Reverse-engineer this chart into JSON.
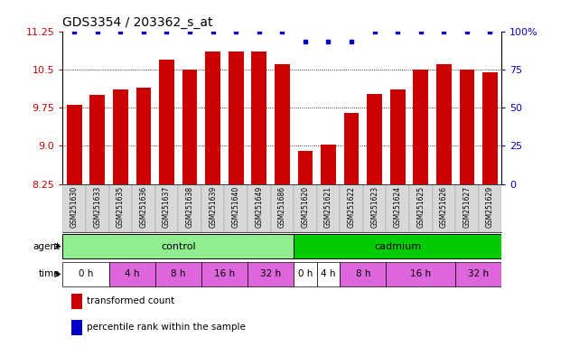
{
  "title": "GDS3354 / 203362_s_at",
  "samples": [
    "GSM251630",
    "GSM251633",
    "GSM251635",
    "GSM251636",
    "GSM251637",
    "GSM251638",
    "GSM251639",
    "GSM251640",
    "GSM251649",
    "GSM251686",
    "GSM251620",
    "GSM251621",
    "GSM251622",
    "GSM251623",
    "GSM251624",
    "GSM251625",
    "GSM251626",
    "GSM251627",
    "GSM251629"
  ],
  "bar_values": [
    9.8,
    10.0,
    10.1,
    10.15,
    10.7,
    10.5,
    10.85,
    10.85,
    10.85,
    10.6,
    8.9,
    9.02,
    9.65,
    10.02,
    10.1,
    10.5,
    10.6,
    10.5,
    10.45
  ],
  "percentile_values": [
    100,
    100,
    100,
    100,
    100,
    100,
    100,
    100,
    100,
    100,
    93,
    93,
    93,
    100,
    100,
    100,
    100,
    100,
    100
  ],
  "bar_color": "#cc0000",
  "dot_color": "#0000cc",
  "ylim_left": [
    8.25,
    11.25
  ],
  "yticks_left": [
    8.25,
    9.0,
    9.75,
    10.5,
    11.25
  ],
  "ylim_right": [
    0,
    100
  ],
  "yticks_right": [
    0,
    25,
    50,
    75,
    100
  ],
  "ytick_labels_right": [
    "0",
    "25",
    "50",
    "75",
    "100%"
  ],
  "agent_control_count": 10,
  "agent_cadmium_count": 9,
  "agent_control_label": "control",
  "agent_cadmium_label": "cadmium",
  "control_color": "#90ee90",
  "cadmium_color": "#00cc00",
  "time_layout": [
    {
      "label": "0 h",
      "start": 0,
      "end": 2,
      "color": "#ffffff"
    },
    {
      "label": "4 h",
      "start": 2,
      "end": 4,
      "color": "#dd66dd"
    },
    {
      "label": "8 h",
      "start": 4,
      "end": 6,
      "color": "#dd66dd"
    },
    {
      "label": "16 h",
      "start": 6,
      "end": 8,
      "color": "#dd66dd"
    },
    {
      "label": "32 h",
      "start": 8,
      "end": 10,
      "color": "#dd66dd"
    },
    {
      "label": "0 h",
      "start": 10,
      "end": 11,
      "color": "#ffffff"
    },
    {
      "label": "4 h",
      "start": 11,
      "end": 12,
      "color": "#ffffff"
    },
    {
      "label": "8 h",
      "start": 12,
      "end": 14,
      "color": "#dd66dd"
    },
    {
      "label": "16 h",
      "start": 14,
      "end": 17,
      "color": "#dd66dd"
    },
    {
      "label": "32 h",
      "start": 17,
      "end": 19,
      "color": "#dd66dd"
    }
  ],
  "legend_items": [
    {
      "color": "#cc0000",
      "label": "transformed count"
    },
    {
      "color": "#0000cc",
      "label": "percentile rank within the sample"
    }
  ],
  "bg_color": "#ffffff",
  "tick_label_color_left": "#cc0000",
  "tick_label_color_right": "#0000cc",
  "title_fontsize": 10,
  "bar_width": 0.65
}
